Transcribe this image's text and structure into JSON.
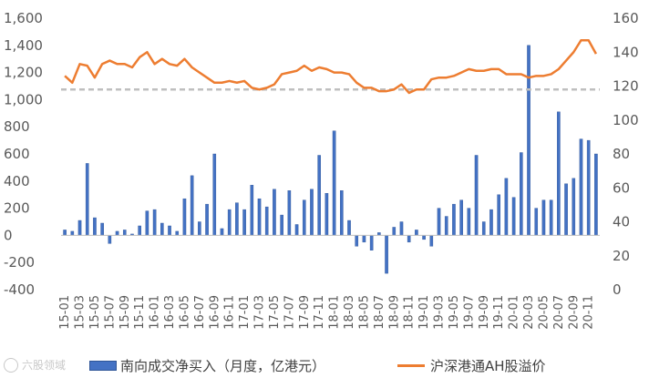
{
  "chart_data": {
    "type": "bar+line",
    "x": [
      "15-01",
      "15-02",
      "15-03",
      "15-04",
      "15-05",
      "15-06",
      "15-07",
      "15-08",
      "15-09",
      "15-10",
      "15-11",
      "15-12",
      "16-01",
      "16-02",
      "16-03",
      "16-04",
      "16-05",
      "16-06",
      "16-07",
      "16-08",
      "16-09",
      "16-10",
      "16-11",
      "16-12",
      "17-01",
      "17-02",
      "17-03",
      "17-04",
      "17-05",
      "17-06",
      "17-07",
      "17-08",
      "17-09",
      "17-10",
      "17-11",
      "17-12",
      "18-01",
      "18-02",
      "18-03",
      "18-04",
      "18-05",
      "18-06",
      "18-07",
      "18-08",
      "18-09",
      "18-10",
      "18-11",
      "18-12",
      "19-01",
      "19-02",
      "19-03",
      "19-04",
      "19-05",
      "19-06",
      "19-07",
      "19-08",
      "19-09",
      "19-10",
      "19-11",
      "19-12",
      "20-01",
      "20-02",
      "20-03",
      "20-04",
      "20-05",
      "20-06",
      "20-07",
      "20-08",
      "20-09",
      "20-10",
      "20-11",
      "20-12"
    ],
    "x_tick_labels": [
      "15-01",
      "15-03",
      "15-05",
      "15-07",
      "15-09",
      "15-11",
      "16-01",
      "16-03",
      "16-05",
      "16-07",
      "16-09",
      "16-11",
      "17-01",
      "17-03",
      "17-05",
      "17-07",
      "17-09",
      "17-11",
      "18-01",
      "18-03",
      "18-05",
      "18-07",
      "18-09",
      "18-11",
      "19-01",
      "19-03",
      "19-05",
      "19-07",
      "19-09",
      "19-11",
      "20-01",
      "20-03",
      "20-05",
      "20-07",
      "20-09",
      "20-11"
    ],
    "series": [
      {
        "name": "南向成交净买入（月度，亿港元）",
        "type": "bar",
        "axis": "left",
        "color": "#4472c4",
        "values": [
          40,
          30,
          110,
          530,
          130,
          90,
          -60,
          30,
          40,
          10,
          70,
          180,
          190,
          90,
          70,
          30,
          270,
          440,
          100,
          230,
          600,
          50,
          190,
          240,
          190,
          370,
          270,
          210,
          340,
          150,
          330,
          80,
          260,
          340,
          590,
          310,
          770,
          330,
          110,
          -80,
          -50,
          -110,
          20,
          -280,
          60,
          100,
          -50,
          40,
          -30,
          -80,
          200,
          140,
          230,
          260,
          200,
          590,
          100,
          190,
          300,
          420,
          280,
          610,
          1400,
          200,
          260,
          260,
          910,
          380,
          420,
          710,
          700,
          600
        ]
      },
      {
        "name": "沪深港通AH股溢价",
        "type": "line",
        "axis": "right",
        "color": "#ed7d31",
        "values": [
          126,
          122,
          133,
          132,
          125,
          133,
          135,
          133,
          133,
          131,
          137,
          140,
          133,
          136,
          133,
          132,
          136,
          131,
          128,
          125,
          122,
          122,
          123,
          122,
          123,
          119,
          118,
          119,
          121,
          127,
          128,
          129,
          132,
          129,
          131,
          130,
          128,
          128,
          127,
          122,
          119,
          119,
          117,
          117,
          118,
          121,
          116,
          118,
          118,
          124,
          125,
          125,
          126,
          128,
          130,
          129,
          129,
          130,
          130,
          127,
          127,
          127,
          125,
          126,
          126,
          127,
          130,
          135,
          140,
          147,
          147,
          139
        ]
      },
      {
        "name": "",
        "type": "reference-line",
        "axis": "right",
        "color": "#bfbfbf",
        "value": 118
      }
    ],
    "ylim_left": [
      -400,
      1600
    ],
    "yticks_left": [
      "-400",
      "-200",
      "0",
      "200",
      "400",
      "600",
      "800",
      "1,000",
      "1,200",
      "1,400",
      "1,600"
    ],
    "ylim_right": [
      0,
      160
    ],
    "yticks_right": [
      "0",
      "20",
      "40",
      "60",
      "80",
      "100",
      "120",
      "140",
      "160"
    ],
    "legend_position": "bottom",
    "grid": false
  },
  "legend": {
    "bar_label": "南向成交净买入（月度，亿港元）",
    "line_label": "沪深港通AH股溢价"
  },
  "watermark": {
    "text": "六股领域"
  }
}
